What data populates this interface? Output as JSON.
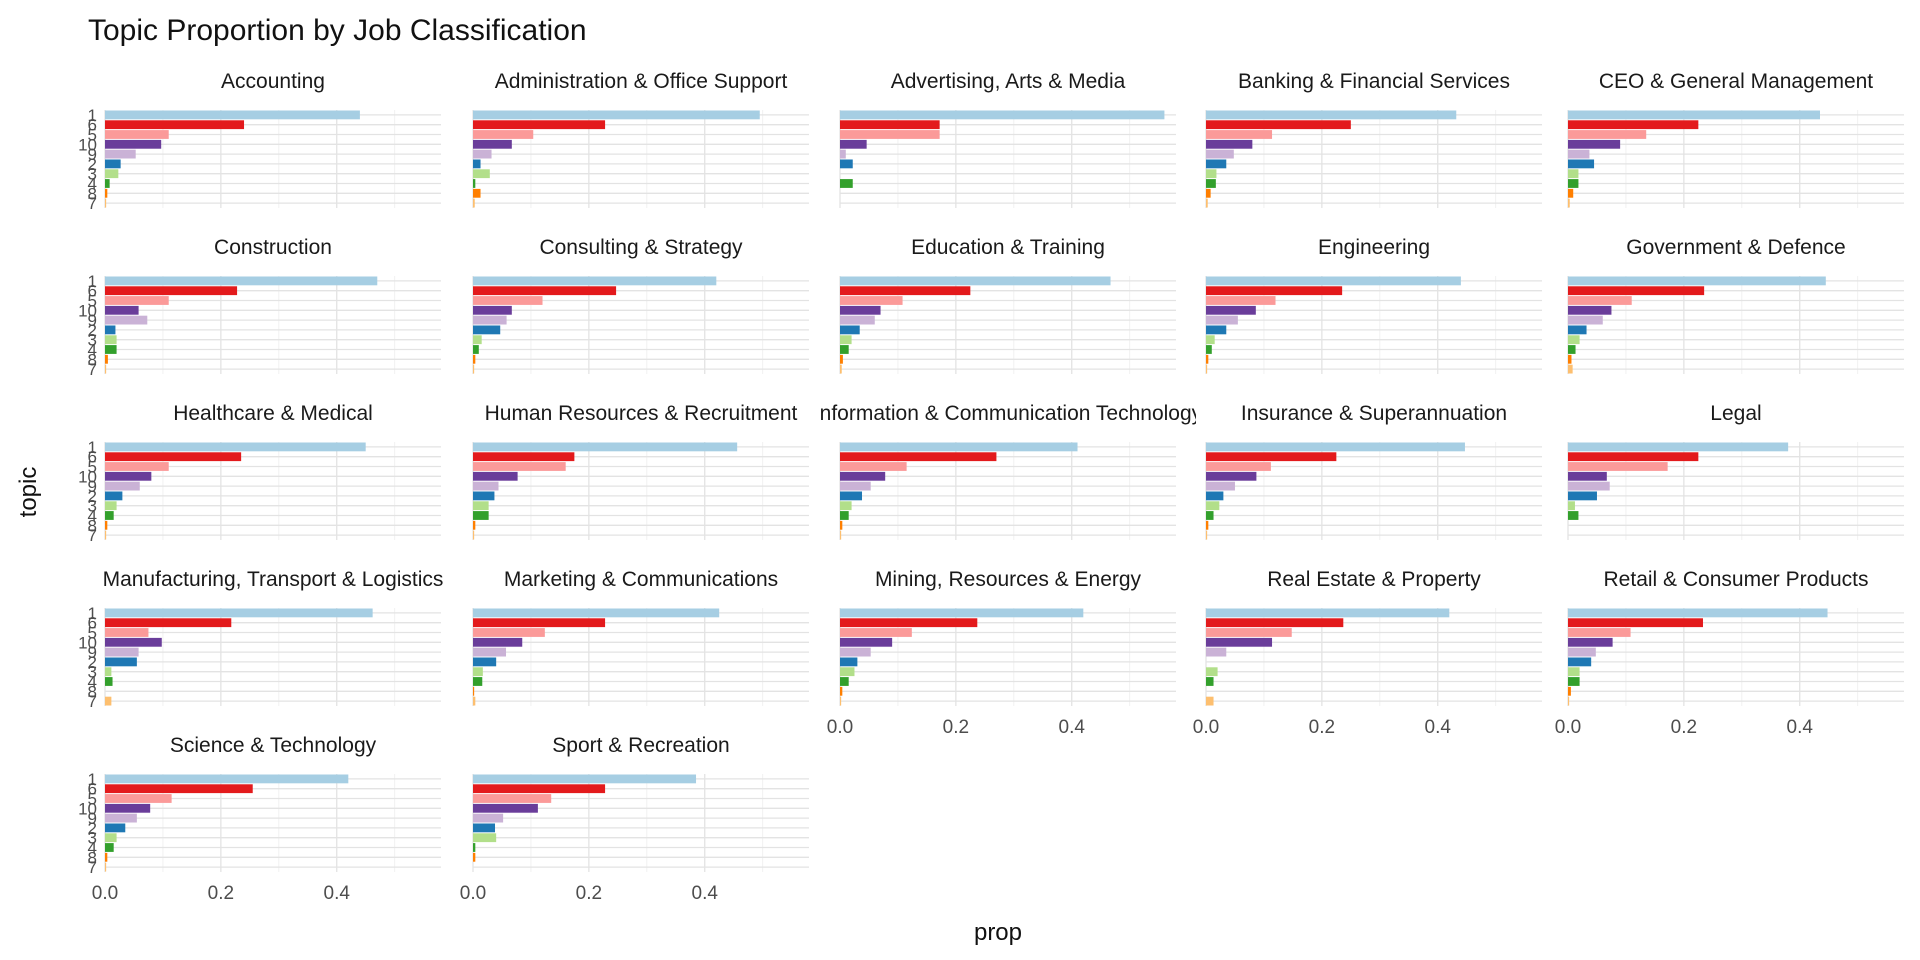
{
  "chart_data": {
    "type": "bar",
    "orientation": "horizontal",
    "title": "Topic Proportion by Job Classification",
    "xlabel": "prop",
    "ylabel": "topic",
    "xlim": [
      0,
      0.58
    ],
    "x_ticks": [
      "0.0",
      "0.2",
      "0.4"
    ],
    "x_tick_values": [
      0,
      0.2,
      0.4
    ],
    "topic_order_top_to_bottom": [
      "1",
      "6",
      "5",
      "10",
      "9",
      "2",
      "3",
      "4",
      "8",
      "7"
    ],
    "grid": true,
    "legend": "none",
    "topic_colors": {
      "1": "#a6cee3",
      "6": "#e31a1c",
      "5": "#fb9a99",
      "10": "#6a3d9a",
      "9": "#cab2d6",
      "2": "#1f78b4",
      "3": "#b2df8a",
      "4": "#33a02c",
      "8": "#ff7f00",
      "7": "#fdbf6f"
    },
    "panels": [
      {
        "name": "Accounting",
        "values": {
          "1": 0.44,
          "6": 0.24,
          "5": 0.11,
          "10": 0.097,
          "9": 0.053,
          "2": 0.027,
          "3": 0.023,
          "4": 0.008,
          "8": 0.004,
          "7": 0.002
        }
      },
      {
        "name": "Administration & Office Support",
        "values": {
          "1": 0.495,
          "6": 0.228,
          "5": 0.104,
          "10": 0.067,
          "9": 0.032,
          "2": 0.013,
          "3": 0.029,
          "4": 0.004,
          "8": 0.013,
          "7": 0.003
        }
      },
      {
        "name": "Advertising, Arts & Media",
        "values": {
          "1": 0.56,
          "6": 0.172,
          "5": 0.172,
          "10": 0.046,
          "9": 0.01,
          "2": 0.022,
          "3": 0.0,
          "4": 0.022,
          "8": 0.0,
          "7": 0.0
        }
      },
      {
        "name": "Banking & Financial Services",
        "values": {
          "1": 0.432,
          "6": 0.25,
          "5": 0.114,
          "10": 0.08,
          "9": 0.048,
          "2": 0.035,
          "3": 0.018,
          "4": 0.017,
          "8": 0.008,
          "7": 0.003
        }
      },
      {
        "name": "CEO & General Management",
        "values": {
          "1": 0.435,
          "6": 0.225,
          "5": 0.135,
          "10": 0.09,
          "9": 0.037,
          "2": 0.045,
          "3": 0.018,
          "4": 0.018,
          "8": 0.009,
          "7": 0.003
        }
      },
      {
        "name": "Construction",
        "values": {
          "1": 0.47,
          "6": 0.228,
          "5": 0.11,
          "10": 0.058,
          "9": 0.073,
          "2": 0.018,
          "3": 0.02,
          "4": 0.02,
          "8": 0.005,
          "7": 0.002
        }
      },
      {
        "name": "Consulting & Strategy",
        "values": {
          "1": 0.42,
          "6": 0.247,
          "5": 0.12,
          "10": 0.067,
          "9": 0.058,
          "2": 0.047,
          "3": 0.015,
          "4": 0.01,
          "8": 0.004,
          "7": 0.002
        }
      },
      {
        "name": "Education & Training",
        "values": {
          "1": 0.467,
          "6": 0.225,
          "5": 0.108,
          "10": 0.07,
          "9": 0.06,
          "2": 0.034,
          "3": 0.02,
          "4": 0.015,
          "8": 0.005,
          "7": 0.003
        }
      },
      {
        "name": "Engineering",
        "values": {
          "1": 0.44,
          "6": 0.235,
          "5": 0.12,
          "10": 0.086,
          "9": 0.055,
          "2": 0.035,
          "3": 0.015,
          "4": 0.01,
          "8": 0.004,
          "7": 0.002
        }
      },
      {
        "name": "Government & Defence",
        "values": {
          "1": 0.445,
          "6": 0.235,
          "5": 0.11,
          "10": 0.075,
          "9": 0.06,
          "2": 0.032,
          "3": 0.02,
          "4": 0.013,
          "8": 0.006,
          "7": 0.008
        }
      },
      {
        "name": "Healthcare & Medical",
        "values": {
          "1": 0.45,
          "6": 0.235,
          "5": 0.11,
          "10": 0.08,
          "9": 0.06,
          "2": 0.03,
          "3": 0.02,
          "4": 0.015,
          "8": 0.004,
          "7": 0.002
        }
      },
      {
        "name": "Human Resources & Recruitment",
        "values": {
          "1": 0.456,
          "6": 0.175,
          "5": 0.16,
          "10": 0.077,
          "9": 0.044,
          "2": 0.037,
          "3": 0.027,
          "4": 0.027,
          "8": 0.004,
          "7": 0.002
        }
      },
      {
        "name": "Information & Communication Technology",
        "values": {
          "1": 0.41,
          "6": 0.27,
          "5": 0.115,
          "10": 0.078,
          "9": 0.053,
          "2": 0.038,
          "3": 0.02,
          "4": 0.015,
          "8": 0.004,
          "7": 0.002
        }
      },
      {
        "name": "Insurance & Superannuation",
        "values": {
          "1": 0.447,
          "6": 0.225,
          "5": 0.112,
          "10": 0.087,
          "9": 0.05,
          "2": 0.03,
          "3": 0.023,
          "4": 0.013,
          "8": 0.004,
          "7": 0.002
        }
      },
      {
        "name": "Legal",
        "values": {
          "1": 0.38,
          "6": 0.225,
          "5": 0.172,
          "10": 0.067,
          "9": 0.072,
          "2": 0.05,
          "3": 0.012,
          "4": 0.018,
          "8": 0.0,
          "7": 0.0
        }
      },
      {
        "name": "Manufacturing, Transport & Logistics",
        "values": {
          "1": 0.462,
          "6": 0.218,
          "5": 0.075,
          "10": 0.098,
          "9": 0.058,
          "2": 0.055,
          "3": 0.011,
          "4": 0.013,
          "8": 0.0,
          "7": 0.011
        }
      },
      {
        "name": "Marketing & Communications",
        "values": {
          "1": 0.425,
          "6": 0.228,
          "5": 0.124,
          "10": 0.085,
          "9": 0.057,
          "2": 0.04,
          "3": 0.017,
          "4": 0.016,
          "8": 0.002,
          "7": 0.004
        }
      },
      {
        "name": "Mining, Resources & Energy",
        "values": {
          "1": 0.42,
          "6": 0.237,
          "5": 0.124,
          "10": 0.09,
          "9": 0.053,
          "2": 0.03,
          "3": 0.025,
          "4": 0.015,
          "8": 0.004,
          "7": 0.002
        }
      },
      {
        "name": "Real Estate & Property",
        "values": {
          "1": 0.42,
          "6": 0.237,
          "5": 0.148,
          "10": 0.114,
          "9": 0.035,
          "2": 0.0,
          "3": 0.02,
          "4": 0.013,
          "8": 0.0,
          "7": 0.013
        }
      },
      {
        "name": "Retail & Consumer Products",
        "values": {
          "1": 0.448,
          "6": 0.233,
          "5": 0.108,
          "10": 0.077,
          "9": 0.048,
          "2": 0.04,
          "3": 0.02,
          "4": 0.02,
          "8": 0.005,
          "7": 0.002
        }
      },
      {
        "name": "Science & Technology",
        "values": {
          "1": 0.42,
          "6": 0.255,
          "5": 0.115,
          "10": 0.078,
          "9": 0.055,
          "2": 0.035,
          "3": 0.02,
          "4": 0.015,
          "8": 0.004,
          "7": 0.002
        }
      },
      {
        "name": "Sport & Recreation",
        "values": {
          "1": 0.385,
          "6": 0.228,
          "5": 0.135,
          "10": 0.112,
          "9": 0.052,
          "2": 0.038,
          "3": 0.04,
          "4": 0.004,
          "8": 0.004,
          "7": 0.0
        }
      }
    ]
  }
}
